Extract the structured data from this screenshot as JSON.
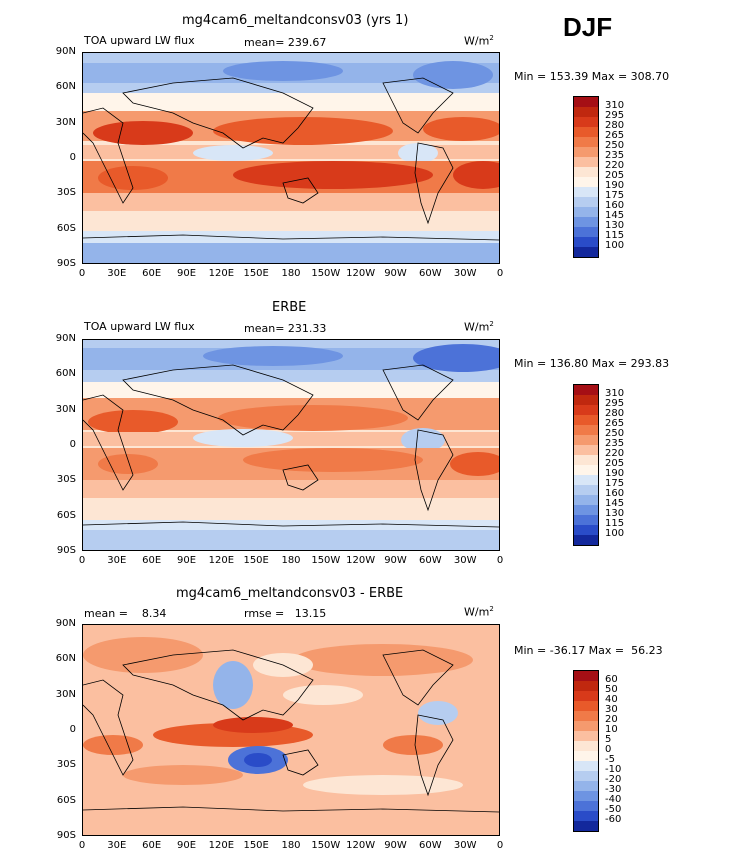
{
  "season": "DJF",
  "panels": [
    {
      "title": "mg4cam6_meltandconsv03 (yrs 1)",
      "left_label": "TOA upward LW flux",
      "center_label": "mean= 239.67",
      "units_prefix": "W/m",
      "units_exp": "2",
      "minmax": "Min = 153.39 Max = 308.70",
      "colorbar_labels": [
        "310",
        "295",
        "280",
        "265",
        "250",
        "235",
        "220",
        "205",
        "190",
        "175",
        "160",
        "145",
        "130",
        "115",
        "100"
      ],
      "colorbar_colors": [
        "#a50f15",
        "#c0280f",
        "#d83a1a",
        "#e85a2a",
        "#f07a48",
        "#f59a6e",
        "#fbbfa0",
        "#fde6d4",
        "#fff5ea",
        "#d8e6f7",
        "#b6cdf0",
        "#94b4ea",
        "#6e94e2",
        "#4c72d8",
        "#2a4cc8",
        "#13289c"
      ]
    },
    {
      "title": "ERBE",
      "left_label": "TOA upward LW flux",
      "center_label": "mean= 231.33",
      "units_prefix": "W/m",
      "units_exp": "2",
      "minmax": "Min = 136.80 Max = 293.83",
      "colorbar_labels": [
        "310",
        "295",
        "280",
        "265",
        "250",
        "235",
        "220",
        "205",
        "190",
        "175",
        "160",
        "145",
        "130",
        "115",
        "100"
      ],
      "colorbar_colors": [
        "#a50f15",
        "#c0280f",
        "#d83a1a",
        "#e85a2a",
        "#f07a48",
        "#f59a6e",
        "#fbbfa0",
        "#fde6d4",
        "#fff5ea",
        "#d8e6f7",
        "#b6cdf0",
        "#94b4ea",
        "#6e94e2",
        "#4c72d8",
        "#2a4cc8",
        "#13289c"
      ]
    },
    {
      "title": "mg4cam6_meltandconsv03 - ERBE",
      "left_label": "mean =    8.34",
      "center_label": "rmse =   13.15",
      "units_prefix": "W/m",
      "units_exp": "2",
      "minmax": "Min = -36.17 Max =  56.23",
      "colorbar_labels": [
        "60",
        "50",
        "40",
        "30",
        "20",
        "10",
        "5",
        "0",
        "-5",
        "-10",
        "-20",
        "-30",
        "-40",
        "-50",
        "-60"
      ],
      "colorbar_colors": [
        "#a50f15",
        "#c0280f",
        "#d83a1a",
        "#e85a2a",
        "#f07a48",
        "#f59a6e",
        "#fbbfa0",
        "#fde6d4",
        "#fff5ea",
        "#d8e6f7",
        "#b6cdf0",
        "#94b4ea",
        "#6e94e2",
        "#4c72d8",
        "#2a4cc8",
        "#13289c"
      ]
    }
  ],
  "lat_ticks": [
    "90N",
    "60N",
    "30N",
    "0",
    "30S",
    "60S",
    "90S"
  ],
  "lon_ticks": [
    "0",
    "30E",
    "60E",
    "90E",
    "120E",
    "150E",
    "180",
    "150W",
    "120W",
    "90W",
    "60W",
    "30W",
    "0"
  ]
}
